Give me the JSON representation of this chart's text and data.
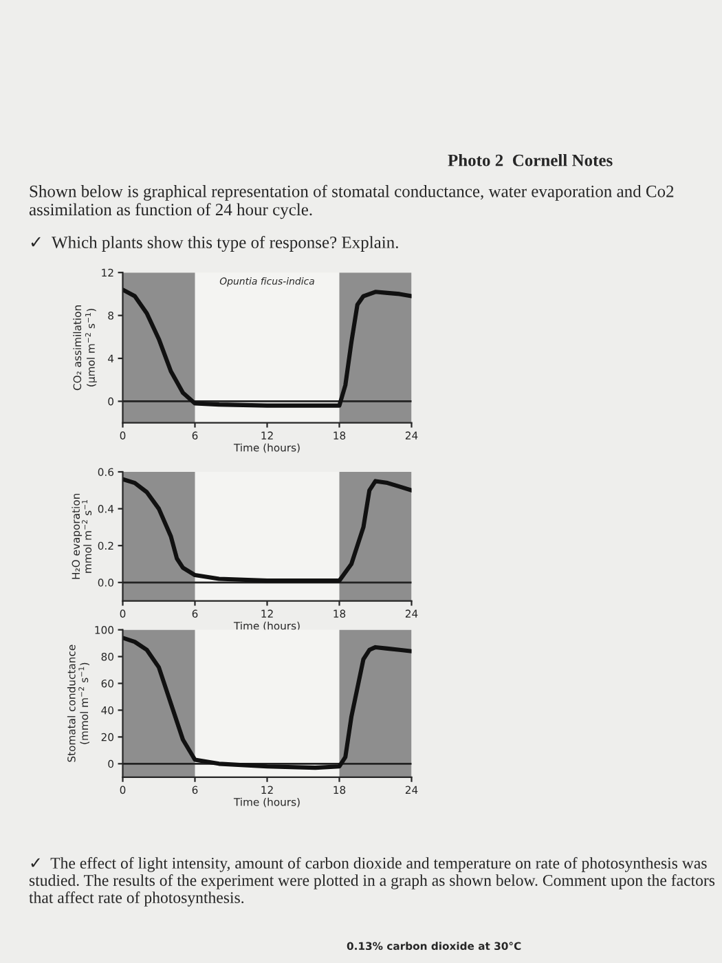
{
  "chart_data": [
    {
      "type": "line",
      "title": "Opuntia ficus-indica",
      "xlabel": "Time (hours)",
      "ylabel": "CO₂ assimilation\n(μmol m$^{−2}$ s$^{−1}$)",
      "x": [
        0,
        1,
        2,
        3,
        4,
        5,
        6,
        8,
        12,
        16,
        18,
        18.5,
        19,
        19.5,
        20,
        21,
        22,
        23,
        24
      ],
      "series": [
        {
          "color": "#111111",
          "values": [
            10.4,
            9.8,
            8.2,
            5.8,
            2.8,
            0.8,
            -0.2,
            -0.3,
            -0.4,
            -0.4,
            -0.4,
            1.5,
            5.5,
            9,
            9.8,
            10.2,
            10.1,
            10.0,
            9.8
          ]
        }
      ],
      "xlim": [
        0,
        24
      ],
      "xticks": [
        0,
        6,
        12,
        18,
        24
      ],
      "ylim": [
        -2,
        12
      ],
      "yticks": [
        0,
        4,
        8,
        12
      ],
      "bands": [
        {
          "axis": "x",
          "from": 0,
          "to": 6,
          "color": "#8e8e8e"
        },
        {
          "axis": "x",
          "from": 18,
          "to": 24,
          "color": "#8e8e8e"
        }
      ],
      "ref_lines": [
        {
          "axis": "y",
          "value": 0,
          "color": "#222222"
        }
      ],
      "annotations": [
        "Photo 2  Cornell Notes",
        "Shown below is graphical representation of stomatal conductance, water evaporation and Co2 assimilation as function of 24 hour cycle.",
        "✓  Which plants show this type of response? Explain."
      ]
    },
    {
      "type": "line",
      "xlabel": "Time (hours)",
      "ylabel": "H₂O evaporation\nmmol m$^{−2}$ s$^{−1}$",
      "x": [
        0,
        1,
        2,
        3,
        4,
        4.5,
        5,
        6,
        8,
        12,
        16,
        18,
        19,
        20,
        20.5,
        21,
        22,
        23,
        24
      ],
      "series": [
        {
          "color": "#111111",
          "values": [
            0.56,
            0.54,
            0.49,
            0.4,
            0.25,
            0.13,
            0.08,
            0.04,
            0.02,
            0.01,
            0.01,
            0.01,
            0.1,
            0.3,
            0.5,
            0.55,
            0.54,
            0.52,
            0.5
          ]
        }
      ],
      "xlim": [
        0,
        24
      ],
      "xticks": [
        0,
        6,
        12,
        18,
        24
      ],
      "ylim": [
        -0.1,
        0.6
      ],
      "yticks": [
        {
          "value": 0,
          "label": "0.0"
        },
        0.2,
        0.4,
        0.6
      ],
      "bands": [
        {
          "axis": "x",
          "from": 0,
          "to": 6,
          "color": "#8e8e8e"
        },
        {
          "axis": "x",
          "from": 18,
          "to": 24,
          "color": "#8e8e8e"
        }
      ],
      "ref_lines": [
        {
          "axis": "y",
          "value": 0,
          "color": "#222222"
        }
      ]
    },
    {
      "type": "line",
      "xlabel": "Time (hours)",
      "ylabel": "Stomatal conductance\n(mmol m$^{−2}$ s$^{−1}$)",
      "x": [
        0,
        1,
        2,
        3,
        4,
        5,
        6,
        8,
        12,
        16,
        18,
        18.5,
        19,
        20,
        20.5,
        21,
        22,
        23,
        24
      ],
      "series": [
        {
          "color": "#111111",
          "values": [
            94,
            91,
            85,
            72,
            45,
            18,
            3,
            0,
            -2,
            -3,
            -2,
            5,
            35,
            78,
            85,
            87,
            86,
            85,
            84
          ]
        }
      ],
      "xlim": [
        0,
        24
      ],
      "xticks": [
        0,
        6,
        12,
        18,
        24
      ],
      "ylim": [
        -10,
        100
      ],
      "yticks": [
        0,
        20,
        40,
        60,
        80,
        100
      ],
      "bands": [
        {
          "axis": "x",
          "from": 0,
          "to": 6,
          "color": "#8e8e8e"
        },
        {
          "axis": "x",
          "from": 18,
          "to": 24,
          "color": "#8e8e8e"
        }
      ],
      "ref_lines": [
        {
          "axis": "y",
          "value": 0,
          "color": "#222222"
        }
      ],
      "annotations": [
        "✓  The effect of light intensity, amount of carbon dioxide and temperature on rate of photosynthesis was studied. The results of the experiment were plotted in a graph as shown below. Comment upon the factors that affect rate of photosynthesis.",
        "0.13% carbon dioxide at 30°C"
      ]
    }
  ]
}
